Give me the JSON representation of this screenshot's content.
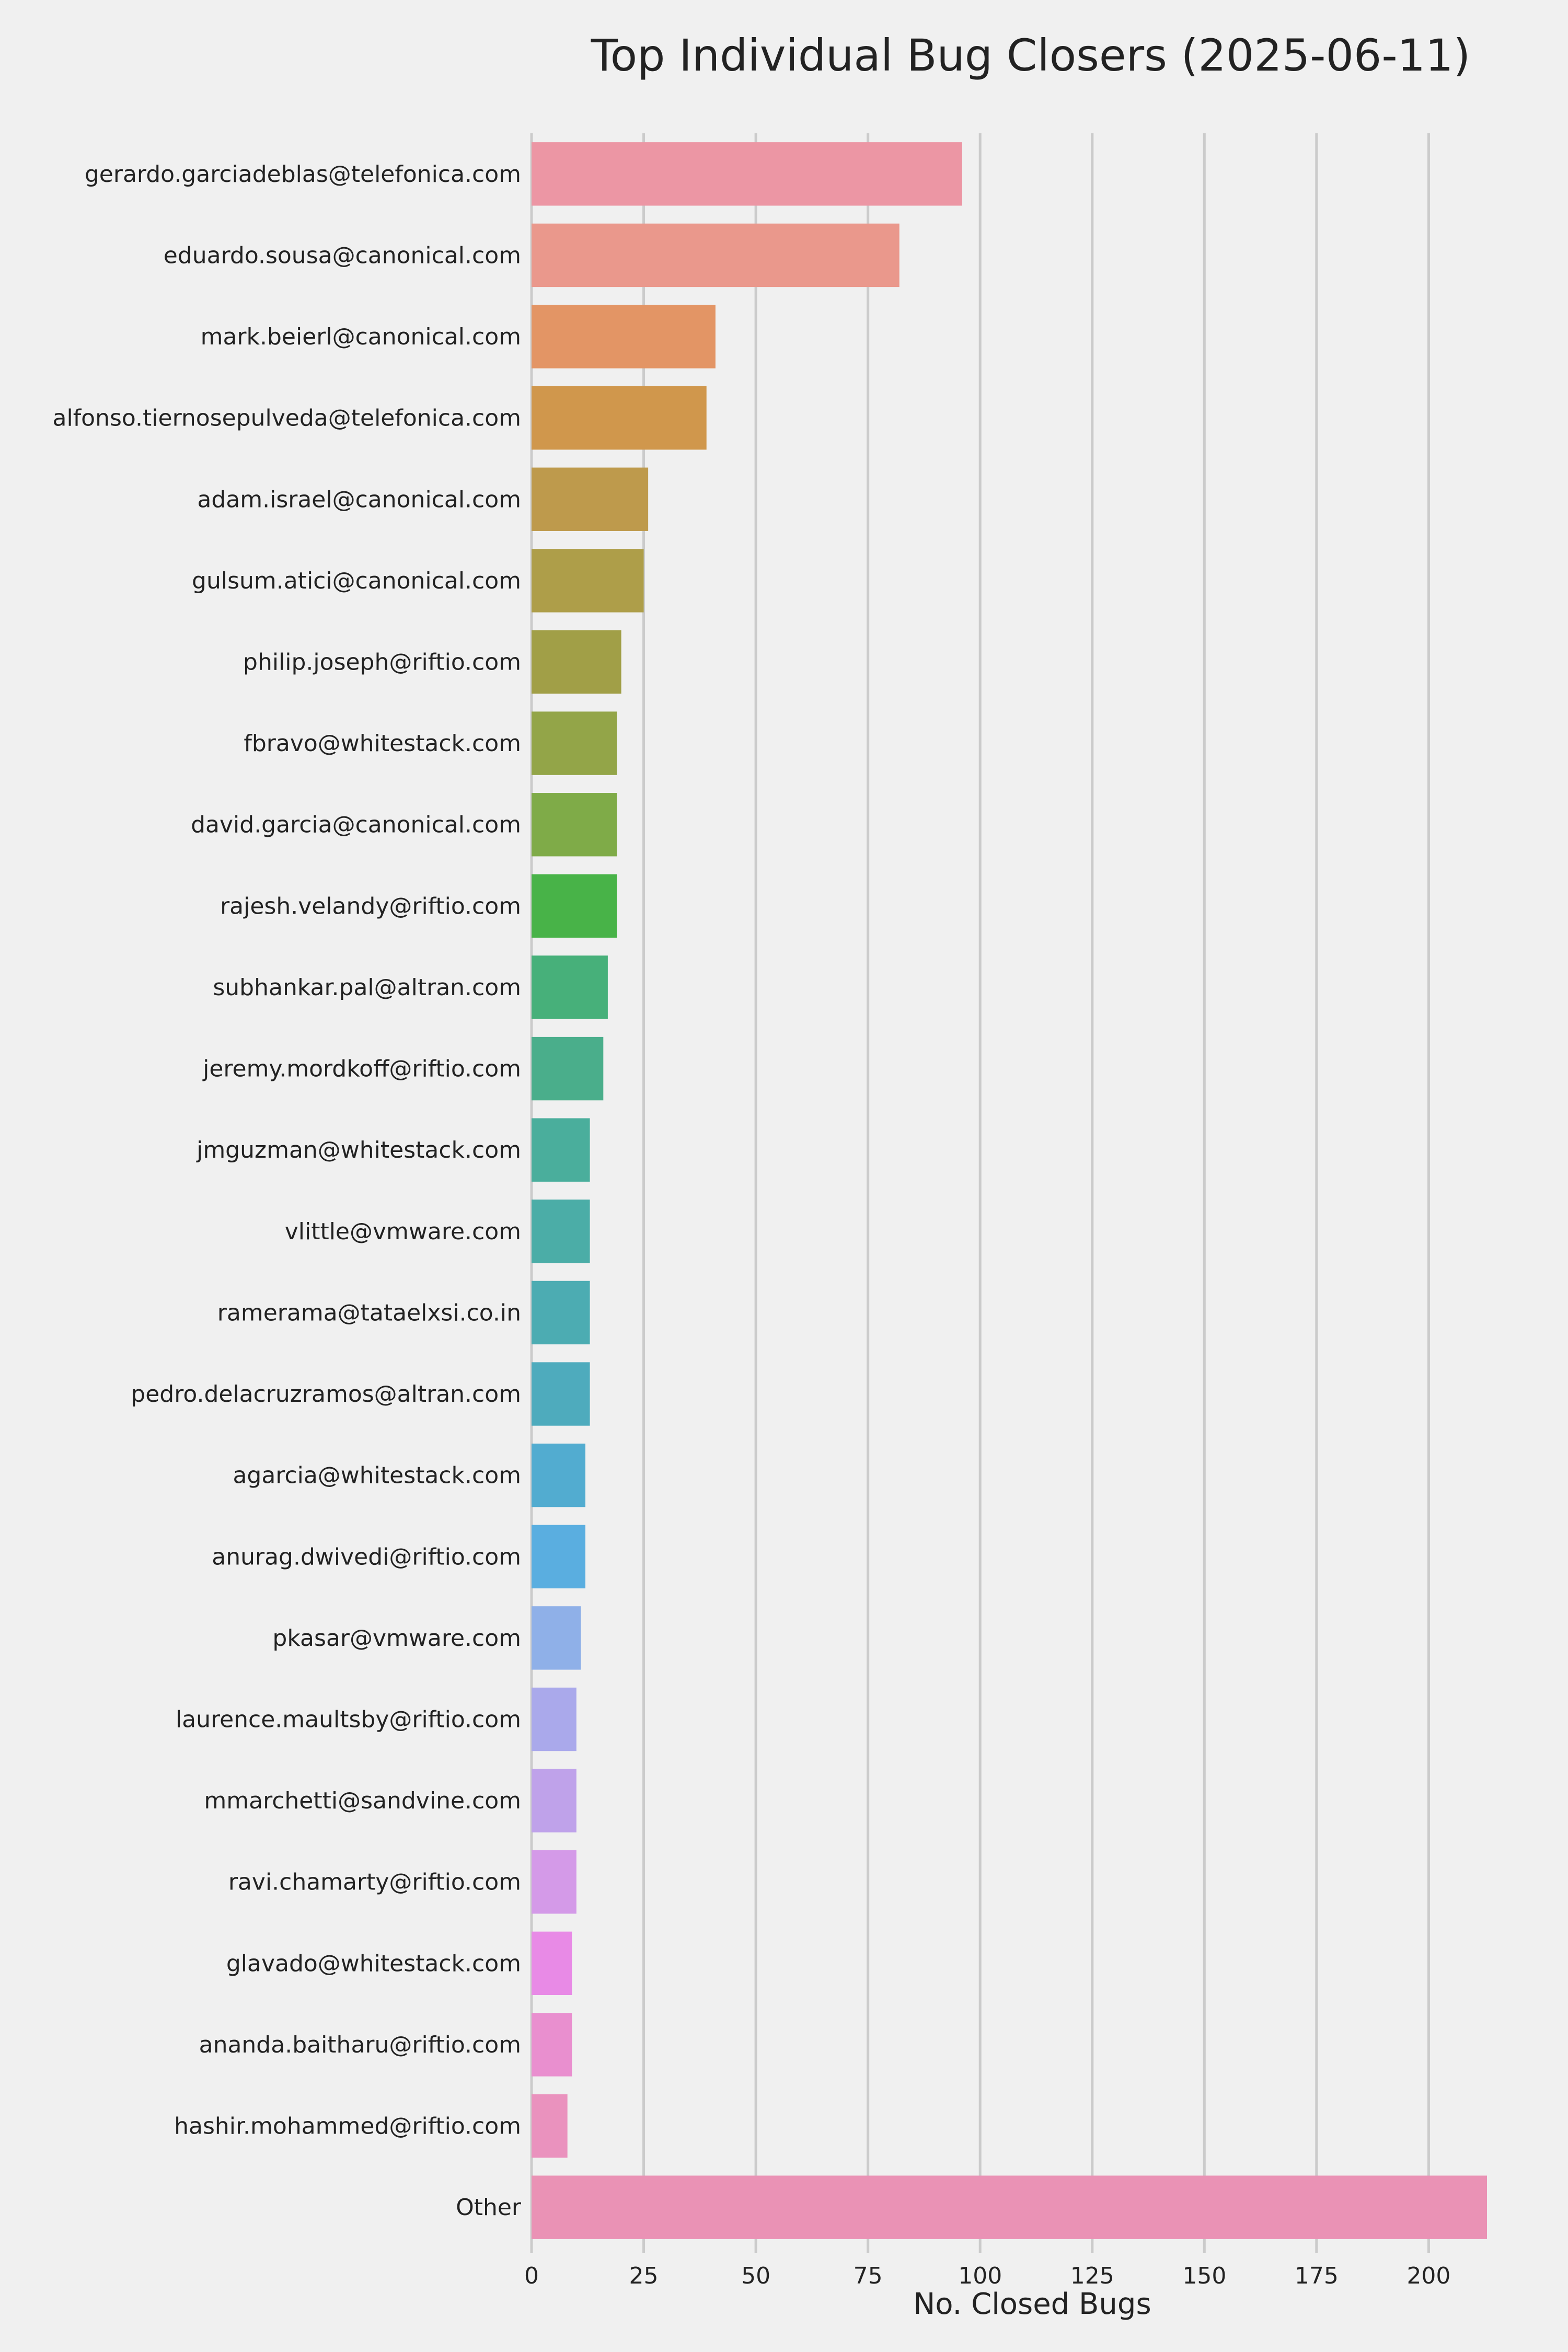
{
  "chart_data": {
    "type": "bar",
    "orientation": "horizontal",
    "title": "Top Individual Bug Closers (2025-06-11)",
    "xlabel": "No. Closed Bugs",
    "ylabel": "",
    "xlim": [
      0,
      213
    ],
    "xticks": [
      0,
      25,
      50,
      75,
      100,
      125,
      150,
      175,
      200
    ],
    "grid": "vertical",
    "categories": [
      "gerardo.garciadeblas@telefonica.com",
      "eduardo.sousa@canonical.com",
      "mark.beierl@canonical.com",
      "alfonso.tiernosepulveda@telefonica.com",
      "adam.israel@canonical.com",
      "gulsum.atici@canonical.com",
      "philip.joseph@riftio.com",
      "fbravo@whitestack.com",
      "david.garcia@canonical.com",
      "rajesh.velandy@riftio.com",
      "subhankar.pal@altran.com",
      "jeremy.mordkoff@riftio.com",
      "jmguzman@whitestack.com",
      "vlittle@vmware.com",
      "ramerama@tataelxsi.co.in",
      "pedro.delacruzramos@altran.com",
      "agarcia@whitestack.com",
      "anurag.dwivedi@riftio.com",
      "pkasar@vmware.com",
      "laurence.maultsby@riftio.com",
      "mmarchetti@sandvine.com",
      "ravi.chamarty@riftio.com",
      "glavado@whitestack.com",
      "ananda.baitharu@riftio.com",
      "hashir.mohammed@riftio.com",
      "Other"
    ],
    "values": [
      96,
      82,
      41,
      39,
      26,
      25,
      20,
      19,
      19,
      19,
      17,
      16,
      13,
      13,
      13,
      13,
      12,
      12,
      11,
      10,
      10,
      10,
      9,
      9,
      8,
      213
    ],
    "colors": [
      "#ec96a4",
      "#ea988c",
      "#e39565",
      "#d0974c",
      "#be9a4c",
      "#ae9e49",
      "#a19f47",
      "#93a548",
      "#7fab48",
      "#48b348",
      "#47b07a",
      "#4aae8b",
      "#4aae9c",
      "#4bada7",
      "#4cacb2",
      "#4eabbd",
      "#52acd0",
      "#5aaee0",
      "#8fb0e8",
      "#aaa9eb",
      "#bfa2ea",
      "#d49ae8",
      "#e88ae6",
      "#e98fcf",
      "#ea92be",
      "#ea92b5"
    ],
    "background": "#f0f0f0",
    "grid_color": "#cbcbcb"
  }
}
